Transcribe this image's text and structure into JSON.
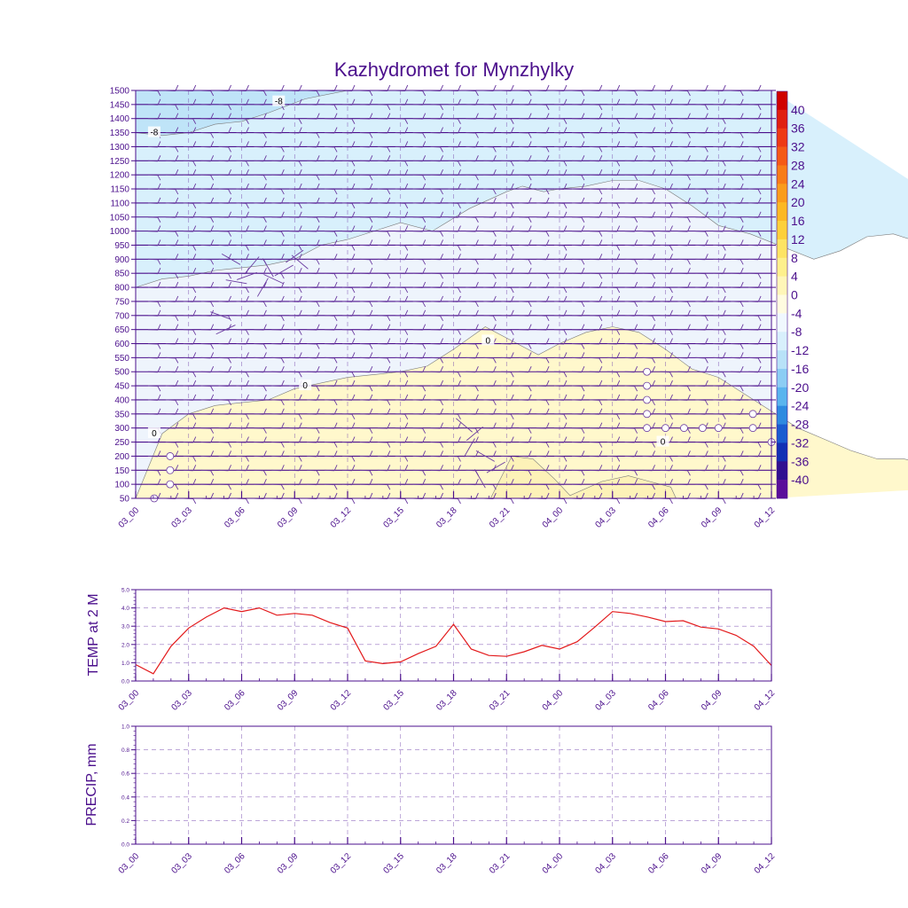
{
  "title": "Kazhydromet for Mynzhylky",
  "colors": {
    "text": "#4b0f8c",
    "temp_line": "#e31a1c",
    "fill_cold1": "#d8f0fc",
    "fill_cold2": "#bfe4f8",
    "fill_cool": "#eef4fc",
    "fill_warm": "#fff8cc",
    "fill_warm2": "#fdf2b8"
  },
  "x_ticks": [
    "03_00",
    "03_03",
    "03_06",
    "03_09",
    "03_12",
    "03_15",
    "03_18",
    "03_21",
    "04_00",
    "04_03",
    "04_06",
    "04_09",
    "04_12"
  ],
  "chart_data": [
    {
      "type": "heatmap",
      "title": "Kazhydromet for Mynzhylky",
      "xlabel": "",
      "ylabel": "",
      "x_ticks": [
        "03_00",
        "03_03",
        "03_06",
        "03_09",
        "03_12",
        "03_15",
        "03_18",
        "03_21",
        "04_00",
        "04_03",
        "04_06",
        "04_09",
        "04_12"
      ],
      "y_ticks": [
        50,
        100,
        150,
        200,
        250,
        300,
        350,
        400,
        450,
        500,
        550,
        600,
        650,
        700,
        750,
        800,
        850,
        900,
        950,
        1000,
        1050,
        1100,
        1150,
        1200,
        1250,
        1300,
        1350,
        1400,
        1450,
        1500
      ],
      "ylim": [
        50,
        1500
      ],
      "colorbar_ticks": [
        40,
        36,
        32,
        28,
        24,
        20,
        16,
        12,
        8,
        4,
        0,
        -4,
        -8,
        -12,
        -16,
        -20,
        -24,
        -28,
        -32,
        -36,
        -40
      ],
      "colorbar_colors": [
        "#d00000",
        "#e02010",
        "#ee3a14",
        "#f55a16",
        "#f87c18",
        "#fa9c1c",
        "#fcb824",
        "#fdd03a",
        "#fde464",
        "#fef08c",
        "#fff6b8",
        "#fffce0",
        "#f0f8fe",
        "#d8f0fc",
        "#b8e2f8",
        "#8ccdf4",
        "#5ab4ee",
        "#2e8ae0",
        "#1a5cd0",
        "#1230b4",
        "#301090",
        "#5a0e9a"
      ],
      "contour_labels": [
        "-8",
        "-8",
        "0",
        "0",
        "0",
        "0"
      ],
      "contours": [
        {
          "value": -8,
          "level": [
            1350,
            1340,
            1350,
            1380,
            1390,
            1420,
            1470,
            1500,
            1500
          ],
          "x": [
            0,
            0.5,
            1,
            1.5,
            2,
            2.5,
            3.2,
            4,
            5
          ]
        },
        {
          "value": -4,
          "level": [
            800,
            830,
            840,
            860,
            870,
            880,
            900,
            950,
            970,
            1000,
            1030,
            1000,
            1080,
            1140,
            1160,
            1140,
            1150,
            1160,
            1180,
            1180,
            1150,
            1090,
            1020,
            990,
            960,
            900,
            930,
            980,
            990,
            960,
            950,
            980,
            950
          ],
          "x": [
            0,
            0.5,
            1,
            1.5,
            2,
            2.5,
            3,
            3.5,
            4,
            4.5,
            5,
            5.6,
            6.3,
            7,
            7.3,
            7.7,
            8,
            8.5,
            9,
            9.5,
            10,
            10.5,
            11,
            11.6,
            12,
            12.8,
            13.3,
            13.8,
            14.3,
            14.8,
            15.5,
            16,
            16.5
          ]
        },
        {
          "value": 0,
          "level": [
            50,
            280,
            350,
            380,
            390,
            400,
            440,
            460,
            480,
            490,
            500,
            520,
            580,
            660,
            600,
            560,
            600,
            640,
            660,
            640,
            580,
            510,
            480,
            420,
            360,
            300,
            260,
            220,
            190,
            190,
            150,
            100
          ],
          "x": [
            0,
            0.5,
            1,
            1.5,
            2,
            2.5,
            3,
            3.5,
            4,
            4.5,
            5,
            5.5,
            6,
            6.6,
            7.2,
            7.6,
            8,
            8.5,
            9,
            9.5,
            10,
            10.5,
            11,
            11.5,
            12,
            12.5,
            13,
            13.5,
            14,
            14.5,
            15.5,
            16.5
          ]
        },
        {
          "value": 4,
          "level": [
            50,
            200,
            190,
            120,
            60,
            110,
            130,
            110,
            90,
            50
          ],
          "x": [
            6.7,
            7.1,
            7.5,
            7.9,
            8.2,
            8.8,
            9.3,
            9.7,
            10.1,
            10.2
          ]
        }
      ]
    },
    {
      "type": "line",
      "xlabel": "",
      "ylabel": "TEMP at 2 M",
      "x_ticks": [
        "03_00",
        "03_03",
        "03_06",
        "03_09",
        "03_12",
        "03_15",
        "03_18",
        "03_21",
        "04_00",
        "04_03",
        "04_06",
        "04_09",
        "04_12"
      ],
      "ylim": [
        0.0,
        5.0
      ],
      "y_ticks": [
        "0.0",
        "1.0",
        "2.0",
        "3.0",
        "4.0",
        "5.0"
      ],
      "grid": true,
      "x": [
        0,
        1,
        2,
        3,
        4,
        5,
        6,
        7,
        8,
        9,
        10,
        11,
        12,
        13,
        14,
        15,
        16,
        17,
        18,
        19,
        20,
        21,
        22,
        23,
        24,
        25,
        26,
        27,
        28,
        29,
        30,
        31,
        32,
        33,
        34,
        35,
        36
      ],
      "values": [
        0.9,
        0.4,
        1.9,
        2.9,
        3.5,
        4.0,
        3.8,
        4.0,
        3.6,
        3.7,
        3.6,
        3.2,
        2.9,
        1.1,
        0.95,
        1.05,
        1.5,
        1.9,
        3.1,
        1.75,
        1.4,
        1.35,
        1.6,
        1.95,
        1.75,
        2.15,
        2.95,
        3.8,
        3.7,
        3.5,
        3.25,
        3.3,
        2.95,
        2.85,
        2.5,
        1.9,
        0.85
      ]
    },
    {
      "type": "line",
      "xlabel": "",
      "ylabel": "PRECIP, mm",
      "x_ticks": [
        "03_00",
        "03_03",
        "03_06",
        "03_09",
        "03_12",
        "03_15",
        "03_18",
        "03_21",
        "04_00",
        "04_03",
        "04_06",
        "04_09",
        "04_12"
      ],
      "ylim": [
        0.0,
        1.0
      ],
      "y_ticks": [
        "0.0",
        "0.2",
        "0.4",
        "0.6",
        "0.8",
        "1.0"
      ],
      "grid": true,
      "x": [],
      "values": []
    }
  ]
}
